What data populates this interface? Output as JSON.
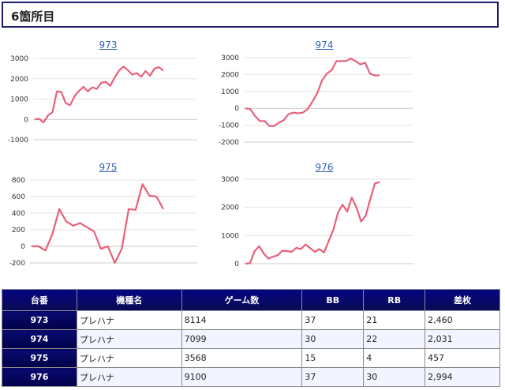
{
  "header": {
    "title": "6箇所目"
  },
  "chart_data": [
    {
      "type": "line",
      "title": "973",
      "y_ticks": [
        3000,
        2000,
        1000,
        0,
        -1000
      ],
      "ylim": [
        -1000,
        3000
      ],
      "color": "#e8607a",
      "values": [
        0,
        30,
        -150,
        200,
        350,
        1380,
        1350,
        800,
        700,
        1150,
        1400,
        1600,
        1380,
        1580,
        1500,
        1800,
        1850,
        1650,
        2050,
        2400,
        2600,
        2420,
        2200,
        2280,
        2100,
        2380,
        2150,
        2500,
        2570,
        2400
      ]
    },
    {
      "type": "line",
      "title": "974",
      "y_ticks": [
        3000,
        2000,
        1000,
        0,
        -1000,
        -2000
      ],
      "ylim": [
        -2000,
        3000
      ],
      "color": "#e8607a",
      "values": [
        0,
        -50,
        -450,
        -750,
        -750,
        -1050,
        -1050,
        -850,
        -700,
        -350,
        -250,
        -300,
        -250,
        -50,
        400,
        900,
        1650,
        2050,
        2250,
        2800,
        2800,
        2800,
        2950,
        2800,
        2600,
        2700,
        2050,
        1950,
        1950
      ]
    },
    {
      "type": "line",
      "title": "975",
      "y_ticks": [
        800,
        600,
        400,
        200,
        0,
        -200
      ],
      "ylim": [
        -200,
        800
      ],
      "color": "#e8607a",
      "values": [
        0,
        0,
        -50,
        150,
        450,
        300,
        250,
        280,
        230,
        180,
        -30,
        0,
        -200,
        -30,
        450,
        440,
        750,
        610,
        600,
        450
      ]
    },
    {
      "type": "line",
      "title": "976",
      "y_ticks": [
        3000,
        2000,
        1000,
        0
      ],
      "ylim": [
        0,
        3000
      ],
      "color": "#e8607a",
      "values": [
        0,
        20,
        450,
        620,
        350,
        180,
        250,
        300,
        460,
        450,
        420,
        560,
        520,
        680,
        550,
        420,
        520,
        400,
        800,
        1200,
        1800,
        2100,
        1850,
        2350,
        2000,
        1500,
        1700,
        2300,
        2850,
        2900
      ]
    }
  ],
  "table": {
    "headers": [
      "台番",
      "機種名",
      "ゲーム数",
      "BB",
      "RB",
      "差枚"
    ],
    "rows": [
      [
        "973",
        "プレハナ",
        "8114",
        "37",
        "21",
        "2,460"
      ],
      [
        "974",
        "プレハナ",
        "7099",
        "30",
        "22",
        "2,031"
      ],
      [
        "975",
        "プレハナ",
        "3568",
        "15",
        "4",
        "457"
      ],
      [
        "976",
        "プレハナ",
        "9100",
        "37",
        "30",
        "2,994"
      ]
    ]
  }
}
